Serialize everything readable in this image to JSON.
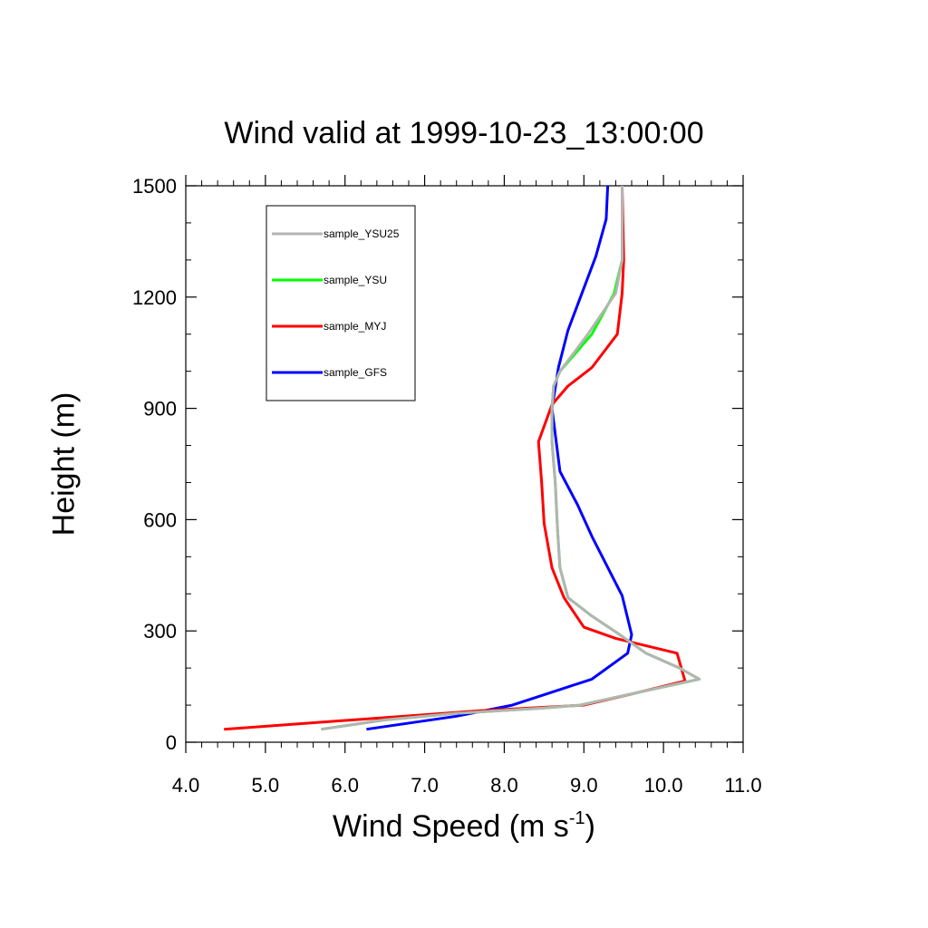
{
  "chart_data": {
    "type": "line",
    "title": "Wind valid at 1999-10-23_13:00:00",
    "xlabel_base": "Wind Speed (m s",
    "xlabel_sup": "-1",
    "xlabel_close": ")",
    "ylabel": "Height (m)",
    "xlim": [
      4.0,
      11.0
    ],
    "ylim": [
      0,
      1500
    ],
    "xticks": [
      "4.0",
      "5.0",
      "6.0",
      "7.0",
      "8.0",
      "9.0",
      "10.0",
      "11.0"
    ],
    "yticks": [
      "0",
      "300",
      "600",
      "900",
      "1200",
      "1500"
    ],
    "legend_position": "top-left",
    "series": [
      {
        "name": "sample_YSU25",
        "color": "#b4b4b4",
        "points": [
          [
            5.7,
            35
          ],
          [
            6.5,
            60
          ],
          [
            7.4,
            78
          ],
          [
            8.5,
            92
          ],
          [
            8.95,
            100
          ],
          [
            9.7,
            135
          ],
          [
            10.45,
            170
          ],
          [
            10.2,
            200
          ],
          [
            9.78,
            240
          ],
          [
            9.45,
            290
          ],
          [
            9.1,
            340
          ],
          [
            8.8,
            390
          ],
          [
            8.7,
            470
          ],
          [
            8.67,
            570
          ],
          [
            8.64,
            700
          ],
          [
            8.6,
            810
          ],
          [
            8.6,
            900
          ],
          [
            8.62,
            960
          ],
          [
            8.7,
            1000
          ],
          [
            9.05,
            1100
          ],
          [
            9.4,
            1210
          ],
          [
            9.48,
            1300
          ],
          [
            9.48,
            1500
          ]
        ]
      },
      {
        "name": "sample_YSU",
        "color": "#00ff00",
        "points": [
          [
            5.7,
            35
          ],
          [
            6.5,
            60
          ],
          [
            7.4,
            78
          ],
          [
            8.5,
            92
          ],
          [
            8.95,
            100
          ],
          [
            9.7,
            135
          ],
          [
            10.45,
            170
          ],
          [
            10.2,
            200
          ],
          [
            9.78,
            240
          ],
          [
            9.45,
            290
          ],
          [
            9.1,
            340
          ],
          [
            8.8,
            390
          ],
          [
            8.7,
            470
          ],
          [
            8.67,
            570
          ],
          [
            8.64,
            700
          ],
          [
            8.6,
            810
          ],
          [
            8.6,
            900
          ],
          [
            8.62,
            960
          ],
          [
            8.7,
            1000
          ],
          [
            9.1,
            1100
          ],
          [
            9.38,
            1210
          ],
          [
            9.48,
            1300
          ],
          [
            9.48,
            1500
          ]
        ]
      },
      {
        "name": "sample_MYJ",
        "color": "#ff0000",
        "points": [
          [
            4.48,
            35
          ],
          [
            7.7,
            85
          ],
          [
            9.0,
            100
          ],
          [
            9.6,
            130
          ],
          [
            10.27,
            165
          ],
          [
            10.17,
            240
          ],
          [
            9.4,
            280
          ],
          [
            9.0,
            310
          ],
          [
            8.75,
            390
          ],
          [
            8.6,
            470
          ],
          [
            8.5,
            590
          ],
          [
            8.47,
            700
          ],
          [
            8.43,
            810
          ],
          [
            8.6,
            910
          ],
          [
            8.8,
            960
          ],
          [
            9.1,
            1010
          ],
          [
            9.42,
            1100
          ],
          [
            9.48,
            1210
          ],
          [
            9.5,
            1300
          ],
          [
            9.48,
            1500
          ]
        ]
      },
      {
        "name": "sample_GFS",
        "color": "#0000ff",
        "points": [
          [
            6.27,
            35
          ],
          [
            7.4,
            70
          ],
          [
            8.1,
            100
          ],
          [
            9.1,
            170
          ],
          [
            9.55,
            240
          ],
          [
            9.6,
            290
          ],
          [
            9.48,
            395
          ],
          [
            9.1,
            555
          ],
          [
            8.92,
            640
          ],
          [
            8.7,
            730
          ],
          [
            8.6,
            900
          ],
          [
            8.68,
            1010
          ],
          [
            8.8,
            1110
          ],
          [
            9.15,
            1310
          ],
          [
            9.28,
            1410
          ],
          [
            9.3,
            1500
          ]
        ]
      }
    ]
  }
}
